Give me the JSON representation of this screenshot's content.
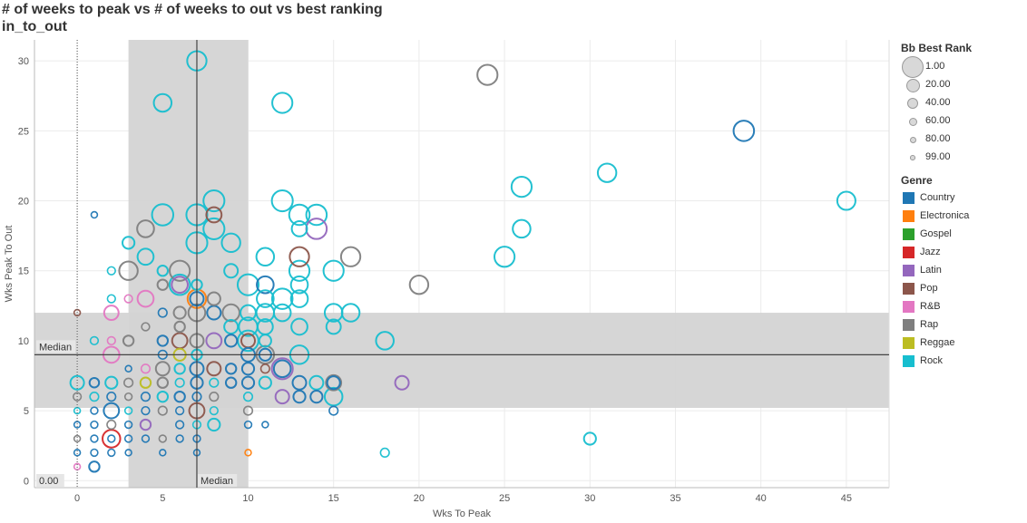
{
  "titles": {
    "line1": "# of weeks to peak vs # of weeks to out vs best ranking",
    "line2": "in_to_out"
  },
  "colors": {
    "Country": "#1f77b4",
    "Electronica": "#ff7f0e",
    "Gospel": "#2ca02c",
    "Jazz": "#d62728",
    "Latin": "#9467bd",
    "Pop": "#8c564b",
    "R&B": "#e377c2",
    "Rap": "#7f7f7f",
    "Reggae": "#bcbd22",
    "Rock": "#17becf"
  },
  "legend": {
    "size_title": "Bb Best Rank",
    "size_items": [
      "1.00",
      "20.00",
      "40.00",
      "60.00",
      "80.00",
      "99.00"
    ],
    "genre_title": "Genre",
    "genres": [
      "Country",
      "Electronica",
      "Gospel",
      "Jazz",
      "Latin",
      "Pop",
      "R&B",
      "Rap",
      "Reggae",
      "Rock"
    ]
  },
  "chart_data": {
    "type": "scatter",
    "xlabel": "Wks To Peak",
    "ylabel": "Wks Peak To Out",
    "xlim": [
      -2.5,
      47.5
    ],
    "ylim": [
      -0.5,
      31.5
    ],
    "xticks": [
      0,
      5,
      10,
      15,
      20,
      25,
      30,
      35,
      40,
      45
    ],
    "yticks": [
      0,
      5,
      10,
      15,
      20,
      25,
      30
    ],
    "grid": true,
    "reference_lines": [
      {
        "axis": "x",
        "value": 7,
        "label": "Median"
      },
      {
        "axis": "y",
        "value": 9,
        "label": "Median"
      },
      {
        "axis": "x",
        "value": 0,
        "label": "0.00",
        "style": "dotted"
      }
    ],
    "bands": [
      {
        "axis": "x",
        "from": 3,
        "to": 10
      },
      {
        "axis": "y",
        "from": 5.2,
        "to": 12
      }
    ],
    "size_field": "Bb Best Rank",
    "color_field": "Genre",
    "points": [
      {
        "x": 7,
        "y": 30,
        "rank": 15,
        "genre": "Rock"
      },
      {
        "x": 5,
        "y": 27,
        "rank": 25,
        "genre": "Rock"
      },
      {
        "x": 12,
        "y": 27,
        "rank": 10,
        "genre": "Rock"
      },
      {
        "x": 24,
        "y": 29,
        "rank": 10,
        "genre": "Rap"
      },
      {
        "x": 39,
        "y": 25,
        "rank": 8,
        "genre": "Country"
      },
      {
        "x": 31,
        "y": 22,
        "rank": 20,
        "genre": "Rock"
      },
      {
        "x": 26,
        "y": 21,
        "rank": 10,
        "genre": "Rock"
      },
      {
        "x": 45,
        "y": 20,
        "rank": 22,
        "genre": "Rock"
      },
      {
        "x": 5,
        "y": 19,
        "rank": 3,
        "genre": "Rock"
      },
      {
        "x": 7,
        "y": 19,
        "rank": 5,
        "genre": "Rock"
      },
      {
        "x": 8,
        "y": 20,
        "rank": 5,
        "genre": "Rock"
      },
      {
        "x": 8,
        "y": 19,
        "rank": 40,
        "genre": "Pop"
      },
      {
        "x": 8,
        "y": 18,
        "rank": 5,
        "genre": "Rock"
      },
      {
        "x": 7,
        "y": 17,
        "rank": 5,
        "genre": "Rock"
      },
      {
        "x": 9,
        "y": 17,
        "rank": 20,
        "genre": "Rock"
      },
      {
        "x": 12,
        "y": 20,
        "rank": 5,
        "genre": "Rock"
      },
      {
        "x": 13,
        "y": 19,
        "rank": 8,
        "genre": "Rock"
      },
      {
        "x": 14,
        "y": 19,
        "rank": 8,
        "genre": "Rock"
      },
      {
        "x": 13,
        "y": 18,
        "rank": 40,
        "genre": "Rock"
      },
      {
        "x": 14,
        "y": 18,
        "rank": 8,
        "genre": "Latin"
      },
      {
        "x": 26,
        "y": 18,
        "rank": 25,
        "genre": "Rock"
      },
      {
        "x": 1,
        "y": 19,
        "rank": 95,
        "genre": "Country"
      },
      {
        "x": 3,
        "y": 17,
        "rank": 60,
        "genre": "Rock"
      },
      {
        "x": 4,
        "y": 18,
        "rank": 30,
        "genre": "Rap"
      },
      {
        "x": 4,
        "y": 16,
        "rank": 35,
        "genre": "Rock"
      },
      {
        "x": 3,
        "y": 15,
        "rank": 20,
        "genre": "Rap"
      },
      {
        "x": 2,
        "y": 15,
        "rank": 85,
        "genre": "Rock"
      },
      {
        "x": 5,
        "y": 15,
        "rank": 70,
        "genre": "Rock"
      },
      {
        "x": 6,
        "y": 15,
        "rank": 10,
        "genre": "Rap"
      },
      {
        "x": 5,
        "y": 14,
        "rank": 70,
        "genre": "Rap"
      },
      {
        "x": 6,
        "y": 14,
        "rank": 8,
        "genre": "Rock"
      },
      {
        "x": 6,
        "y": 14,
        "rank": 35,
        "genre": "Latin"
      },
      {
        "x": 7,
        "y": 14,
        "rank": 70,
        "genre": "Rock"
      },
      {
        "x": 9,
        "y": 15,
        "rank": 50,
        "genre": "Rock"
      },
      {
        "x": 10,
        "y": 14,
        "rank": 5,
        "genre": "Rock"
      },
      {
        "x": 11,
        "y": 16,
        "rank": 25,
        "genre": "Rock"
      },
      {
        "x": 11,
        "y": 14,
        "rank": 30,
        "genre": "Country"
      },
      {
        "x": 11,
        "y": 13,
        "rank": 30,
        "genre": "Rock"
      },
      {
        "x": 12,
        "y": 13,
        "rank": 8,
        "genre": "Rock"
      },
      {
        "x": 13,
        "y": 15,
        "rank": 10,
        "genre": "Rock"
      },
      {
        "x": 13,
        "y": 14,
        "rank": 30,
        "genre": "Rock"
      },
      {
        "x": 13,
        "y": 13,
        "rank": 30,
        "genre": "Rock"
      },
      {
        "x": 13,
        "y": 16,
        "rank": 15,
        "genre": "Pop"
      },
      {
        "x": 15,
        "y": 15,
        "rank": 10,
        "genre": "Rock"
      },
      {
        "x": 16,
        "y": 16,
        "rank": 15,
        "genre": "Rap"
      },
      {
        "x": 20,
        "y": 14,
        "rank": 20,
        "genre": "Rap"
      },
      {
        "x": 25,
        "y": 16,
        "rank": 10,
        "genre": "Rock"
      },
      {
        "x": 2,
        "y": 13,
        "rank": 85,
        "genre": "Rock"
      },
      {
        "x": 2,
        "y": 12,
        "rank": 45,
        "genre": "R&B"
      },
      {
        "x": 3,
        "y": 13,
        "rank": 85,
        "genre": "R&B"
      },
      {
        "x": 4,
        "y": 13,
        "rank": 35,
        "genre": "R&B"
      },
      {
        "x": 5,
        "y": 12,
        "rank": 80,
        "genre": "Country"
      },
      {
        "x": 6,
        "y": 12,
        "rank": 60,
        "genre": "Rap"
      },
      {
        "x": 7,
        "y": 13,
        "rank": 20,
        "genre": "Electronica"
      },
      {
        "x": 7,
        "y": 13,
        "rank": 50,
        "genre": "Country"
      },
      {
        "x": 7,
        "y": 12,
        "rank": 30,
        "genre": "Rap"
      },
      {
        "x": 8,
        "y": 13,
        "rank": 55,
        "genre": "Rap"
      },
      {
        "x": 8,
        "y": 12,
        "rank": 50,
        "genre": "Country"
      },
      {
        "x": 9,
        "y": 12,
        "rank": 30,
        "genre": "Rap"
      },
      {
        "x": 10,
        "y": 12,
        "rank": 40,
        "genre": "Rock"
      },
      {
        "x": 11,
        "y": 12,
        "rank": 25,
        "genre": "Rock"
      },
      {
        "x": 12,
        "y": 12,
        "rank": 30,
        "genre": "Rock"
      },
      {
        "x": 15,
        "y": 12,
        "rank": 25,
        "genre": "Rock"
      },
      {
        "x": 16,
        "y": 12,
        "rank": 25,
        "genre": "Rock"
      },
      {
        "x": 15,
        "y": 11,
        "rank": 45,
        "genre": "Rock"
      },
      {
        "x": 10,
        "y": 11,
        "rank": 20,
        "genre": "Rock"
      },
      {
        "x": 11,
        "y": 11,
        "rank": 40,
        "genre": "Rock"
      },
      {
        "x": 13,
        "y": 11,
        "rank": 35,
        "genre": "Rock"
      },
      {
        "x": 9,
        "y": 11,
        "rank": 50,
        "genre": "Rock"
      },
      {
        "x": 6,
        "y": 11,
        "rank": 70,
        "genre": "Rap"
      },
      {
        "x": 4,
        "y": 11,
        "rank": 85,
        "genre": "Rap"
      },
      {
        "x": 1,
        "y": 10,
        "rank": 85,
        "genre": "Rock"
      },
      {
        "x": 2,
        "y": 10,
        "rank": 85,
        "genre": "R&B"
      },
      {
        "x": 3,
        "y": 10,
        "rank": 70,
        "genre": "Rap"
      },
      {
        "x": 5,
        "y": 10,
        "rank": 70,
        "genre": "Country"
      },
      {
        "x": 6,
        "y": 10,
        "rank": 40,
        "genre": "Pop"
      },
      {
        "x": 7,
        "y": 10,
        "rank": 50,
        "genre": "Rap"
      },
      {
        "x": 8,
        "y": 10,
        "rank": 40,
        "genre": "Latin"
      },
      {
        "x": 9,
        "y": 10,
        "rank": 60,
        "genre": "Country"
      },
      {
        "x": 10,
        "y": 10,
        "rank": 8,
        "genre": "Rock"
      },
      {
        "x": 10,
        "y": 10,
        "rank": 50,
        "genre": "Pop"
      },
      {
        "x": 11,
        "y": 10,
        "rank": 60,
        "genre": "Rock"
      },
      {
        "x": 18,
        "y": 10,
        "rank": 25,
        "genre": "Rock"
      },
      {
        "x": 2,
        "y": 9,
        "rank": 35,
        "genre": "R&B"
      },
      {
        "x": 5,
        "y": 9,
        "rank": 80,
        "genre": "Country"
      },
      {
        "x": 6,
        "y": 9,
        "rank": 60,
        "genre": "Reggae"
      },
      {
        "x": 7,
        "y": 9,
        "rank": 70,
        "genre": "Rock"
      },
      {
        "x": 10,
        "y": 9,
        "rank": 50,
        "genre": "Country"
      },
      {
        "x": 11,
        "y": 9,
        "rank": 25,
        "genre": "Rap"
      },
      {
        "x": 11,
        "y": 9,
        "rank": 60,
        "genre": "Country"
      },
      {
        "x": 13,
        "y": 9,
        "rank": 20,
        "genre": "Rock"
      },
      {
        "x": 3,
        "y": 8,
        "rank": 95,
        "genre": "Country"
      },
      {
        "x": 4,
        "y": 8,
        "rank": 80,
        "genre": "R&B"
      },
      {
        "x": 5,
        "y": 8,
        "rank": 50,
        "genre": "Rap"
      },
      {
        "x": 6,
        "y": 8,
        "rank": 70,
        "genre": "Rock"
      },
      {
        "x": 7,
        "y": 8,
        "rank": 50,
        "genre": "Country"
      },
      {
        "x": 8,
        "y": 8,
        "rank": 50,
        "genre": "Pop"
      },
      {
        "x": 9,
        "y": 8,
        "rank": 70,
        "genre": "Country"
      },
      {
        "x": 10,
        "y": 8,
        "rank": 60,
        "genre": "Country"
      },
      {
        "x": 11,
        "y": 8,
        "rank": 80,
        "genre": "Pop"
      },
      {
        "x": 12,
        "y": 8,
        "rank": 5,
        "genre": "Latin"
      },
      {
        "x": 12,
        "y": 8,
        "rank": 30,
        "genre": "Country"
      },
      {
        "x": 0,
        "y": 7,
        "rank": 50,
        "genre": "Rock"
      },
      {
        "x": 1,
        "y": 7,
        "rank": 75,
        "genre": "Country"
      },
      {
        "x": 2,
        "y": 7,
        "rank": 60,
        "genre": "Rock"
      },
      {
        "x": 3,
        "y": 7,
        "rank": 80,
        "genre": "Rap"
      },
      {
        "x": 4,
        "y": 7,
        "rank": 70,
        "genre": "Reggae"
      },
      {
        "x": 5,
        "y": 7,
        "rank": 70,
        "genre": "Rap"
      },
      {
        "x": 6,
        "y": 7,
        "rank": 80,
        "genre": "Rock"
      },
      {
        "x": 7,
        "y": 7,
        "rank": 60,
        "genre": "Country"
      },
      {
        "x": 8,
        "y": 7,
        "rank": 80,
        "genre": "Rock"
      },
      {
        "x": 9,
        "y": 7,
        "rank": 70,
        "genre": "Country"
      },
      {
        "x": 10,
        "y": 7,
        "rank": 60,
        "genre": "Country"
      },
      {
        "x": 11,
        "y": 7,
        "rank": 60,
        "genre": "Rock"
      },
      {
        "x": 13,
        "y": 7,
        "rank": 50,
        "genre": "Country"
      },
      {
        "x": 14,
        "y": 7,
        "rank": 50,
        "genre": "Rock"
      },
      {
        "x": 15,
        "y": 7,
        "rank": 40,
        "genre": "Rap"
      },
      {
        "x": 15,
        "y": 7,
        "rank": 55,
        "genre": "Country"
      },
      {
        "x": 19,
        "y": 7,
        "rank": 50,
        "genre": "Latin"
      },
      {
        "x": 0,
        "y": 6,
        "rank": 85,
        "genre": "Rap"
      },
      {
        "x": 1,
        "y": 6,
        "rank": 80,
        "genre": "Rock"
      },
      {
        "x": 2,
        "y": 6,
        "rank": 80,
        "genre": "Country"
      },
      {
        "x": 3,
        "y": 6,
        "rank": 90,
        "genre": "Rap"
      },
      {
        "x": 4,
        "y": 6,
        "rank": 80,
        "genre": "Country"
      },
      {
        "x": 5,
        "y": 6,
        "rank": 70,
        "genre": "Rock"
      },
      {
        "x": 6,
        "y": 6,
        "rank": 70,
        "genre": "Country"
      },
      {
        "x": 7,
        "y": 6,
        "rank": 80,
        "genre": "Country"
      },
      {
        "x": 8,
        "y": 6,
        "rank": 80,
        "genre": "Rap"
      },
      {
        "x": 10,
        "y": 6,
        "rank": 80,
        "genre": "Rock"
      },
      {
        "x": 12,
        "y": 6,
        "rank": 50,
        "genre": "Latin"
      },
      {
        "x": 13,
        "y": 6,
        "rank": 60,
        "genre": "Country"
      },
      {
        "x": 14,
        "y": 6,
        "rank": 60,
        "genre": "Country"
      },
      {
        "x": 15,
        "y": 6,
        "rank": 25,
        "genre": "Rock"
      },
      {
        "x": 0,
        "y": 5,
        "rank": 95,
        "genre": "Rock"
      },
      {
        "x": 1,
        "y": 5,
        "rank": 90,
        "genre": "Country"
      },
      {
        "x": 2,
        "y": 5,
        "rank": 40,
        "genre": "Country"
      },
      {
        "x": 3,
        "y": 5,
        "rank": 90,
        "genre": "Rock"
      },
      {
        "x": 4,
        "y": 5,
        "rank": 85,
        "genre": "Country"
      },
      {
        "x": 5,
        "y": 5,
        "rank": 80,
        "genre": "Rap"
      },
      {
        "x": 6,
        "y": 5,
        "rank": 85,
        "genre": "Country"
      },
      {
        "x": 7,
        "y": 5,
        "rank": 40,
        "genre": "Pop"
      },
      {
        "x": 8,
        "y": 5,
        "rank": 85,
        "genre": "Rock"
      },
      {
        "x": 10,
        "y": 5,
        "rank": 80,
        "genre": "Rap"
      },
      {
        "x": 15,
        "y": 5,
        "rank": 80,
        "genre": "Country"
      },
      {
        "x": 0,
        "y": 4,
        "rank": 95,
        "genre": "Country"
      },
      {
        "x": 1,
        "y": 4,
        "rank": 90,
        "genre": "Country"
      },
      {
        "x": 2,
        "y": 4,
        "rank": 80,
        "genre": "Rap"
      },
      {
        "x": 3,
        "y": 4,
        "rank": 90,
        "genre": "Country"
      },
      {
        "x": 4,
        "y": 4,
        "rank": 70,
        "genre": "Latin"
      },
      {
        "x": 6,
        "y": 4,
        "rank": 85,
        "genre": "Country"
      },
      {
        "x": 7,
        "y": 4,
        "rank": 85,
        "genre": "Rock"
      },
      {
        "x": 8,
        "y": 4,
        "rank": 60,
        "genre": "Rock"
      },
      {
        "x": 10,
        "y": 4,
        "rank": 90,
        "genre": "Country"
      },
      {
        "x": 11,
        "y": 4,
        "rank": 95,
        "genre": "Country"
      },
      {
        "x": 0,
        "y": 3,
        "rank": 95,
        "genre": "Rap"
      },
      {
        "x": 1,
        "y": 3,
        "rank": 90,
        "genre": "Country"
      },
      {
        "x": 2,
        "y": 3,
        "rank": 25,
        "genre": "Jazz"
      },
      {
        "x": 2,
        "y": 3,
        "rank": 90,
        "genre": "Country"
      },
      {
        "x": 3,
        "y": 3,
        "rank": 90,
        "genre": "Country"
      },
      {
        "x": 4,
        "y": 3,
        "rank": 90,
        "genre": "Country"
      },
      {
        "x": 5,
        "y": 3,
        "rank": 90,
        "genre": "Rap"
      },
      {
        "x": 6,
        "y": 3,
        "rank": 90,
        "genre": "Country"
      },
      {
        "x": 7,
        "y": 3,
        "rank": 90,
        "genre": "Country"
      },
      {
        "x": 30,
        "y": 3,
        "rank": 60,
        "genre": "Rock"
      },
      {
        "x": 0,
        "y": 2,
        "rank": 95,
        "genre": "Country"
      },
      {
        "x": 1,
        "y": 2,
        "rank": 90,
        "genre": "Country"
      },
      {
        "x": 2,
        "y": 2,
        "rank": 90,
        "genre": "Country"
      },
      {
        "x": 3,
        "y": 2,
        "rank": 95,
        "genre": "Country"
      },
      {
        "x": 5,
        "y": 2,
        "rank": 95,
        "genre": "Country"
      },
      {
        "x": 7,
        "y": 2,
        "rank": 95,
        "genre": "Country"
      },
      {
        "x": 10,
        "y": 2,
        "rank": 95,
        "genre": "Electronica"
      },
      {
        "x": 18,
        "y": 2,
        "rank": 80,
        "genre": "Rock"
      },
      {
        "x": 0,
        "y": 1,
        "rank": 95,
        "genre": "R&B"
      },
      {
        "x": 1,
        "y": 1,
        "rank": 70,
        "genre": "Country"
      },
      {
        "x": 0,
        "y": 12,
        "rank": 95,
        "genre": "Pop"
      }
    ]
  },
  "axis": {
    "xlabel": "Wks To Peak",
    "ylabel": "Wks Peak To Out",
    "median_label": "Median",
    "zero_label": "0.00"
  }
}
